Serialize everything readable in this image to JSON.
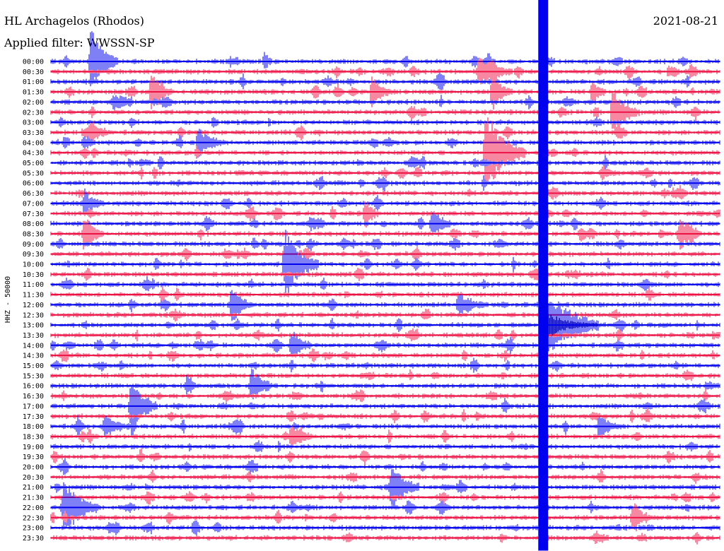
{
  "chart_data": {
    "type": "line",
    "title": "HL Archagelos (Rhodos)",
    "date": "2021-08-21",
    "filter_label": "Applied filter: WWSSN-SP",
    "ylabel": "HHZ - 50000",
    "row_labels": [
      "00:00",
      "00:30",
      "01:00",
      "01:30",
      "02:00",
      "02:30",
      "03:00",
      "03:30",
      "04:00",
      "04:30",
      "05:00",
      "05:30",
      "06:00",
      "06:30",
      "07:00",
      "07:30",
      "08:00",
      "08:30",
      "09:00",
      "09:30",
      "10:00",
      "10:30",
      "11:00",
      "11:30",
      "12:00",
      "12:30",
      "13:00",
      "13:30",
      "14:00",
      "14:30",
      "15:00",
      "15:30",
      "16:00",
      "16:30",
      "17:00",
      "17:30",
      "18:00",
      "18:30",
      "19:00",
      "19:30",
      "20:00",
      "20:30",
      "21:00",
      "21:30",
      "22:00",
      "22:30",
      "23:00",
      "23:30"
    ],
    "series_colors": [
      "#0000ee",
      "#ee1144"
    ],
    "events": [
      {
        "row": 0,
        "pos": 0.06,
        "amp": 3.5,
        "dur": 0.04
      },
      {
        "row": 0,
        "pos": 0.32,
        "amp": 1.2,
        "dur": 0.01
      },
      {
        "row": 1,
        "pos": 0.64,
        "amp": 1.5,
        "dur": 0.05
      },
      {
        "row": 3,
        "pos": 0.15,
        "amp": 1.8,
        "dur": 0.03
      },
      {
        "row": 3,
        "pos": 0.48,
        "amp": 1.6,
        "dur": 0.03
      },
      {
        "row": 3,
        "pos": 0.66,
        "amp": 2.0,
        "dur": 0.03
      },
      {
        "row": 3,
        "pos": 0.81,
        "amp": 1.2,
        "dur": 0.02
      },
      {
        "row": 5,
        "pos": 0.84,
        "amp": 2.5,
        "dur": 0.04
      },
      {
        "row": 7,
        "pos": 0.06,
        "amp": 1.2,
        "dur": 0.03
      },
      {
        "row": 8,
        "pos": 0.22,
        "amp": 1.4,
        "dur": 0.04
      },
      {
        "row": 9,
        "pos": 0.65,
        "amp": 4.0,
        "dur": 0.06
      },
      {
        "row": 14,
        "pos": 0.05,
        "amp": 1.3,
        "dur": 0.03
      },
      {
        "row": 15,
        "pos": 0.47,
        "amp": 1.5,
        "dur": 0.02
      },
      {
        "row": 16,
        "pos": 0.57,
        "amp": 1.5,
        "dur": 0.03
      },
      {
        "row": 17,
        "pos": 0.05,
        "amp": 2.0,
        "dur": 0.03
      },
      {
        "row": 17,
        "pos": 0.94,
        "amp": 1.6,
        "dur": 0.03
      },
      {
        "row": 20,
        "pos": 0.35,
        "amp": 3.5,
        "dur": 0.05
      },
      {
        "row": 24,
        "pos": 0.27,
        "amp": 2.0,
        "dur": 0.03
      },
      {
        "row": 24,
        "pos": 0.61,
        "amp": 1.2,
        "dur": 0.04
      },
      {
        "row": 26,
        "pos": 0.74,
        "amp": 4.0,
        "dur": 0.08
      },
      {
        "row": 28,
        "pos": 0.36,
        "amp": 1.5,
        "dur": 0.03
      },
      {
        "row": 32,
        "pos": 0.3,
        "amp": 2.0,
        "dur": 0.03
      },
      {
        "row": 34,
        "pos": 0.12,
        "amp": 2.5,
        "dur": 0.04
      },
      {
        "row": 36,
        "pos": 0.08,
        "amp": 1.0,
        "dur": 0.04
      },
      {
        "row": 36,
        "pos": 0.82,
        "amp": 1.2,
        "dur": 0.03
      },
      {
        "row": 37,
        "pos": 0.36,
        "amp": 1.2,
        "dur": 0.03
      },
      {
        "row": 42,
        "pos": 0.51,
        "amp": 2.5,
        "dur": 0.04
      },
      {
        "row": 44,
        "pos": 0.02,
        "amp": 3.0,
        "dur": 0.05
      },
      {
        "row": 45,
        "pos": 0.87,
        "amp": 1.5,
        "dur": 0.03
      }
    ],
    "big_event": {
      "start_row": 0,
      "end_row": 47,
      "pos": 0.735
    }
  }
}
